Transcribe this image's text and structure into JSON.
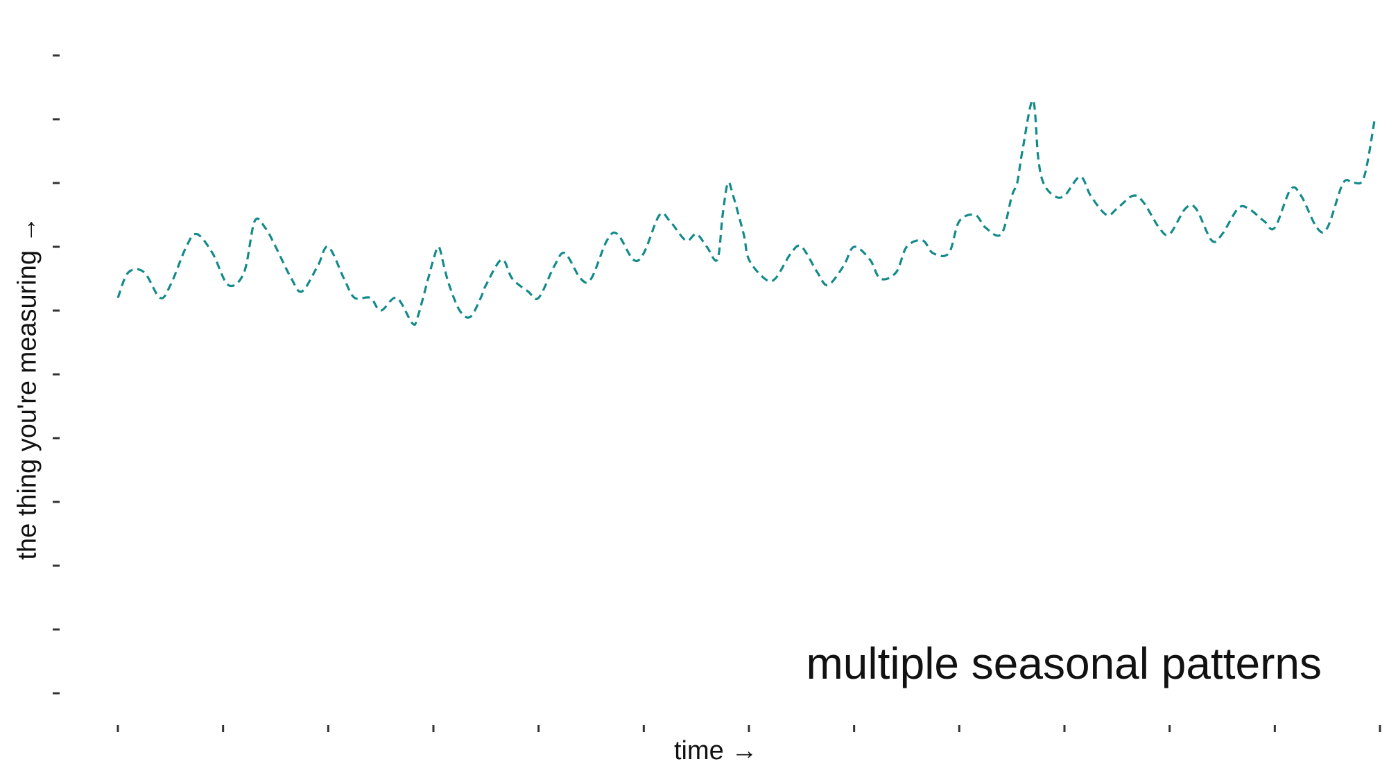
{
  "chart_data": {
    "type": "line",
    "annotation": "multiple seasonal patterns",
    "xlabel": "time →",
    "ylabel": "the thing you're measuring →",
    "xlim": [
      0,
      24
    ],
    "ylim": [
      0,
      10
    ],
    "x_ticks": [
      0,
      2,
      4,
      6,
      8,
      10,
      12,
      14,
      16,
      18,
      20,
      22,
      24
    ],
    "y_ticks": [
      0,
      1,
      2,
      3,
      4,
      5,
      6,
      7,
      8,
      9,
      10
    ],
    "grid": false,
    "line_color": "#138a8a",
    "line_style": "dashed",
    "series": [
      {
        "x": [
          0,
          0.2,
          0.5,
          0.8,
          1.0,
          1.3,
          1.5,
          1.8,
          2.1,
          2.4,
          2.6,
          2.8,
          3.0,
          3.3,
          3.5,
          3.8,
          4.0,
          4.3,
          4.5,
          4.8,
          5.0,
          5.3,
          5.6,
          5.7,
          5.9,
          6.0,
          6.1,
          6.2,
          6.3,
          6.5,
          6.7,
          6.9,
          7.0,
          7.3,
          7.5,
          7.8,
          8.0,
          8.3,
          8.5,
          8.8,
          9.0,
          9.3,
          9.5,
          9.8,
          10.0,
          10.3,
          10.5,
          10.8,
          11.0,
          11.2,
          11.4,
          11.5,
          11.6,
          11.7,
          11.9,
          12.0,
          12.3,
          12.5,
          12.8,
          13.0,
          13.3,
          13.5,
          13.8,
          14.0,
          14.3,
          14.5,
          14.8,
          15.0,
          15.3,
          15.5,
          15.8,
          16.0,
          16.3,
          16.5,
          16.8,
          17.0,
          17.1,
          17.2,
          17.4,
          17.5,
          17.6,
          17.8,
          18.0,
          18.3,
          18.5,
          18.8,
          19.0,
          19.3,
          19.5,
          19.8,
          20.0,
          20.3,
          20.5,
          20.8,
          21.0,
          21.3,
          21.5,
          21.8,
          22.0,
          22.3,
          22.5,
          22.8,
          23.0,
          23.3,
          23.5,
          23.7,
          23.9
        ],
        "y": [
          6.2,
          6.6,
          6.6,
          6.2,
          6.4,
          7.0,
          7.2,
          6.9,
          6.4,
          6.6,
          7.4,
          7.3,
          7.0,
          6.5,
          6.3,
          6.7,
          7.0,
          6.5,
          6.2,
          6.2,
          6.0,
          6.2,
          5.8,
          5.9,
          6.5,
          6.8,
          7.0,
          6.7,
          6.4,
          6.0,
          5.9,
          6.2,
          6.4,
          6.8,
          6.5,
          6.3,
          6.2,
          6.7,
          6.9,
          6.5,
          6.5,
          7.1,
          7.2,
          6.8,
          6.9,
          7.5,
          7.4,
          7.1,
          7.2,
          7.0,
          6.8,
          7.5,
          8.0,
          7.8,
          7.2,
          6.8,
          6.5,
          6.5,
          6.9,
          7.0,
          6.6,
          6.4,
          6.7,
          7.0,
          6.8,
          6.5,
          6.6,
          7.0,
          7.1,
          6.9,
          6.9,
          7.4,
          7.5,
          7.3,
          7.2,
          7.8,
          8.0,
          8.5,
          9.3,
          8.4,
          8.0,
          7.8,
          7.8,
          8.1,
          7.8,
          7.5,
          7.6,
          7.8,
          7.7,
          7.3,
          7.2,
          7.6,
          7.6,
          7.1,
          7.2,
          7.6,
          7.6,
          7.4,
          7.3,
          7.9,
          7.8,
          7.3,
          7.3,
          8.0,
          8.0,
          8.1,
          9.0
        ]
      }
    ]
  }
}
